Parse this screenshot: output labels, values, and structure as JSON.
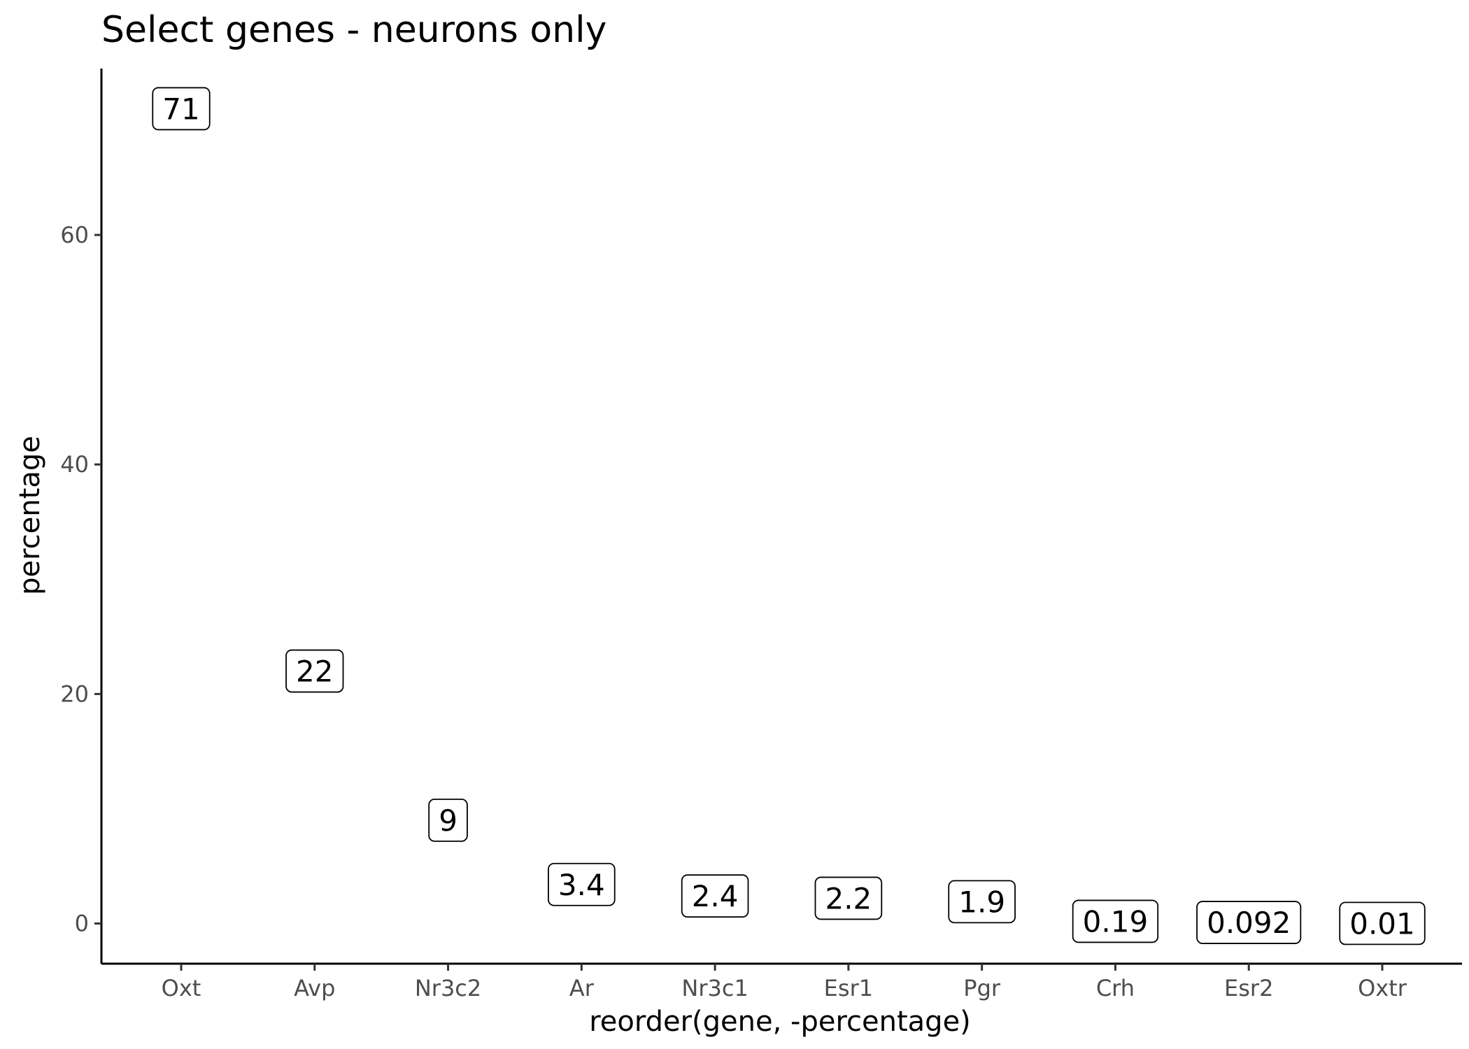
{
  "chart_data": {
    "type": "scatter",
    "title": "Select genes - neurons only",
    "xlabel": "reorder(gene, -percentage)",
    "ylabel": "percentage",
    "categories": [
      "Oxt",
      "Avp",
      "Nr3c2",
      "Ar",
      "Nr3c1",
      "Esr1",
      "Pgr",
      "Crh",
      "Esr2",
      "Oxtr"
    ],
    "values": [
      71,
      22,
      9,
      3.4,
      2.4,
      2.2,
      1.9,
      0.19,
      0.092,
      0.01
    ],
    "labels": [
      "71",
      "22",
      "9",
      "3.4",
      "2.4",
      "2.2",
      "1.9",
      "0.19",
      "0.092",
      "0.01"
    ],
    "yticks": [
      0,
      20,
      40,
      60
    ],
    "ylim": [
      -3.5,
      74.5
    ],
    "grid": false,
    "legend": "none",
    "mark": "label"
  }
}
